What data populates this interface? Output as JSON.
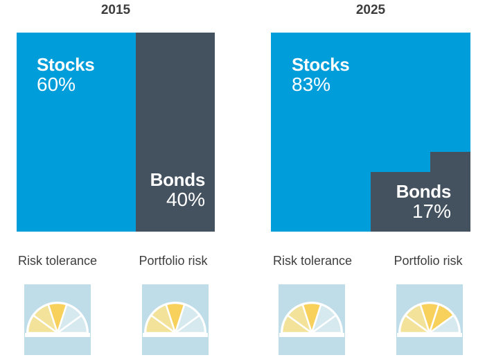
{
  "chart_data": [
    {
      "type": "treemap",
      "title": "2015",
      "segments": [
        {
          "name": "Stocks",
          "label": "60%",
          "value": 60
        },
        {
          "name": "Bonds",
          "label": "40%",
          "value": 40
        }
      ],
      "gauges": [
        {
          "label": "Risk tolerance",
          "level": 3
        },
        {
          "label": "Portfolio risk",
          "level": 3
        }
      ]
    },
    {
      "type": "treemap",
      "title": "2025",
      "segments": [
        {
          "name": "Stocks",
          "label": "83%",
          "value": 83
        },
        {
          "name": "Bonds",
          "label": "17%",
          "value": 17
        }
      ],
      "gauges": [
        {
          "label": "Risk tolerance",
          "level": 3
        },
        {
          "label": "Portfolio risk",
          "level": 4
        }
      ]
    }
  ],
  "colors": {
    "stocks": "#009ddb",
    "bonds": "#44515e",
    "gauge_bg": "#bfdde8",
    "gauge_light": "#f3e39a",
    "gauge_mid": "#f7d15c",
    "gauge_dark": "#f5b21c",
    "gauge_inactive": "#d6e9ef"
  }
}
